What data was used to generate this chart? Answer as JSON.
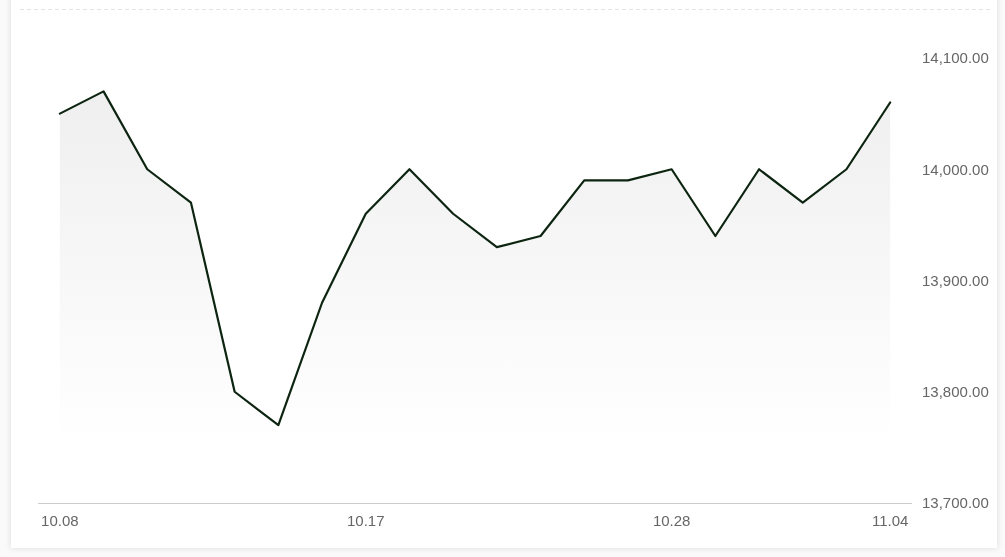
{
  "chart_data": {
    "type": "area",
    "categories": [
      "10.08",
      null,
      null,
      null,
      null,
      null,
      null,
      "10.17",
      null,
      null,
      null,
      null,
      null,
      null,
      "10.28",
      null,
      null,
      null,
      null,
      "11.04"
    ],
    "values": [
      14050,
      14070,
      14000,
      13970,
      13800,
      13770,
      13880,
      13960,
      14000,
      13960,
      13930,
      13940,
      13990,
      13990,
      14000,
      13940,
      14000,
      13970,
      14000,
      14060
    ],
    "color": "#0c2410",
    "ylim": [
      13700,
      14100
    ],
    "yticks": [
      {
        "value": 13700,
        "label": "13,700.00"
      },
      {
        "value": 13800,
        "label": "13,800.00"
      },
      {
        "value": 13900,
        "label": "13,900.00"
      },
      {
        "value": 14000,
        "label": "14,000.00"
      },
      {
        "value": 14100,
        "label": "14,100.00"
      }
    ]
  }
}
